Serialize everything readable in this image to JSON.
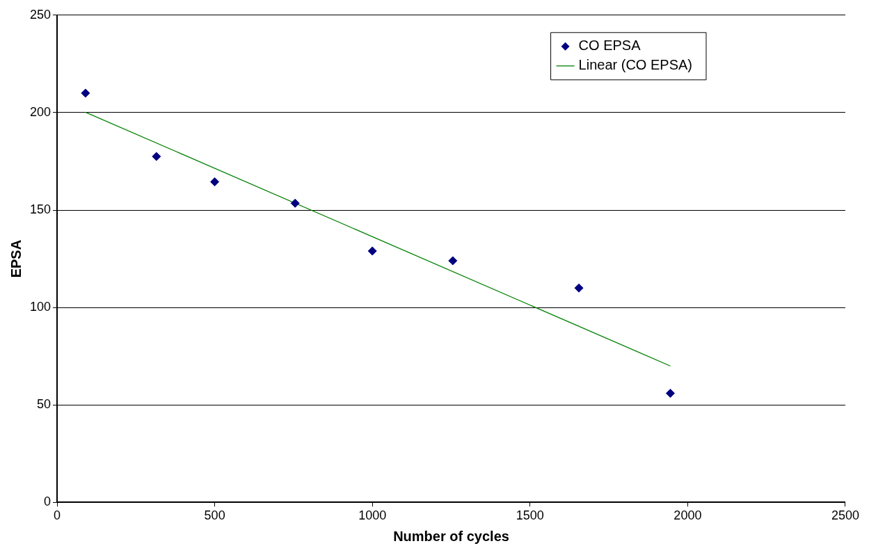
{
  "chart_data": {
    "type": "scatter",
    "xlabel": "Number of cycles",
    "ylabel": "EPSA",
    "xlim": [
      0,
      2500
    ],
    "xticks": [
      0,
      500,
      1000,
      1500,
      2000,
      2500
    ],
    "ylim": [
      0,
      250
    ],
    "yticks": [
      0,
      50,
      100,
      150,
      200,
      250
    ],
    "grid": "y",
    "legend": "top right",
    "marker": "diamond",
    "series": [
      {
        "name": "CO EPSA",
        "type": "scatter",
        "color": "#000080",
        "x": [
          90,
          315,
          500,
          755,
          1000,
          1255,
          1655,
          1945
        ],
        "values": [
          210,
          177.5,
          164.5,
          153.5,
          129,
          124,
          110,
          56
        ]
      },
      {
        "name": "Linear (CO EPSA)",
        "type": "line",
        "color": "#008000",
        "line_style": "solid",
        "marker": "none",
        "x": [
          90,
          1945
        ],
        "values": [
          200.2,
          70
        ]
      }
    ]
  }
}
